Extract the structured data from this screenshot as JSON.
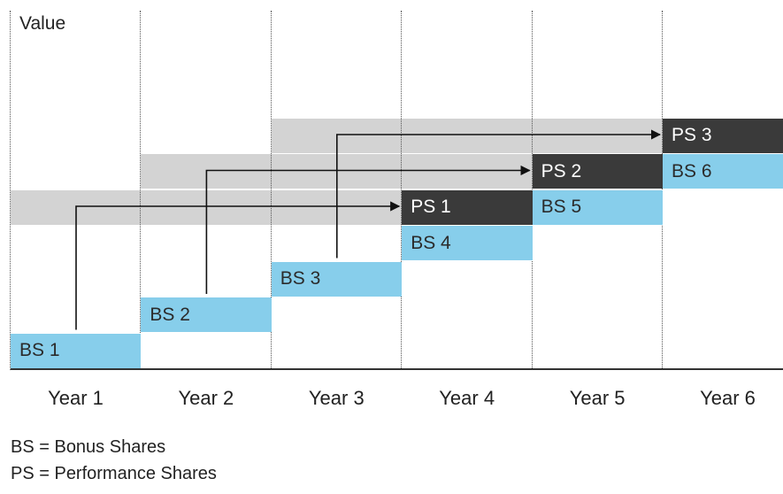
{
  "axis_label": "Value",
  "years": [
    "Year 1",
    "Year 2",
    "Year 3",
    "Year 4",
    "Year 5",
    "Year 6"
  ],
  "bonus_shares": [
    {
      "label": "BS 1",
      "year_index": 0,
      "level": 1
    },
    {
      "label": "BS 2",
      "year_index": 1,
      "level": 2
    },
    {
      "label": "BS 3",
      "year_index": 2,
      "level": 3
    },
    {
      "label": "BS 4",
      "year_index": 3,
      "level": 4
    },
    {
      "label": "BS 5",
      "year_index": 4,
      "level": 5
    },
    {
      "label": "BS 6",
      "year_index": 5,
      "level": 6
    }
  ],
  "performance_shares": [
    {
      "label": "PS 1",
      "from_year_index": 0,
      "year_index": 3,
      "level": 5
    },
    {
      "label": "PS 2",
      "from_year_index": 1,
      "year_index": 4,
      "level": 6
    },
    {
      "label": "PS 3",
      "from_year_index": 2,
      "year_index": 5,
      "level": 7
    }
  ],
  "legend": [
    "BS = Bonus Shares",
    "PS = Performance Shares"
  ],
  "colors": {
    "bonus": "#87ceeb",
    "performance": "#3a3a3a",
    "band": "#d3d3d3",
    "arrow": "#111111"
  }
}
